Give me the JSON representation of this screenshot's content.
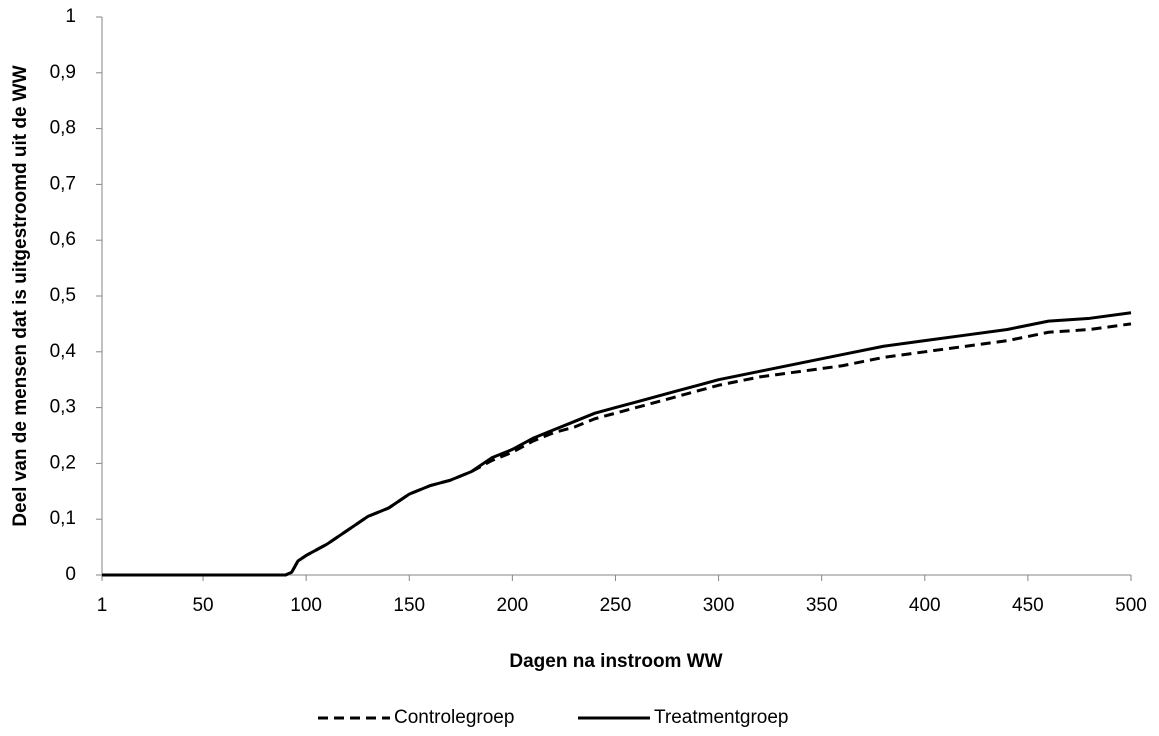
{
  "chart_data": {
    "type": "line",
    "x_label": "Dagen na instroom WW",
    "y_label": "Deel van de mensen dat is uitgestroomd uit de WW",
    "x": [
      1,
      10,
      20,
      30,
      40,
      50,
      60,
      70,
      80,
      90,
      93,
      96,
      100,
      110,
      120,
      130,
      140,
      150,
      160,
      170,
      180,
      190,
      200,
      210,
      220,
      230,
      240,
      250,
      260,
      270,
      280,
      290,
      300,
      320,
      340,
      360,
      380,
      400,
      420,
      440,
      460,
      480,
      500
    ],
    "series": [
      {
        "name": "Controlegroep",
        "color": "#000000",
        "dash": true,
        "values": [
          0,
          0,
          0,
          0,
          0,
          0,
          0,
          0,
          0,
          0,
          0.005,
          0.025,
          0.035,
          0.055,
          0.08,
          0.105,
          0.12,
          0.145,
          0.16,
          0.17,
          0.185,
          0.205,
          0.22,
          0.24,
          0.255,
          0.265,
          0.28,
          0.29,
          0.3,
          0.31,
          0.32,
          0.33,
          0.34,
          0.355,
          0.365,
          0.375,
          0.39,
          0.4,
          0.41,
          0.42,
          0.435,
          0.44,
          0.45
        ]
      },
      {
        "name": "Treatmentgroep",
        "color": "#000000",
        "dash": false,
        "values": [
          0,
          0,
          0,
          0,
          0,
          0,
          0,
          0,
          0,
          0,
          0.005,
          0.025,
          0.035,
          0.055,
          0.08,
          0.105,
          0.12,
          0.145,
          0.16,
          0.17,
          0.185,
          0.21,
          0.225,
          0.245,
          0.26,
          0.275,
          0.29,
          0.3,
          0.31,
          0.32,
          0.33,
          0.34,
          0.35,
          0.365,
          0.38,
          0.395,
          0.41,
          0.42,
          0.43,
          0.44,
          0.455,
          0.46,
          0.47
        ]
      }
    ],
    "xlim": [
      1,
      500
    ],
    "xticks": [
      1,
      50,
      100,
      150,
      200,
      250,
      300,
      350,
      400,
      450,
      500
    ],
    "ylim": [
      0,
      1
    ],
    "yticks": [
      0,
      {
        "value": 0.1,
        "label": "0,1"
      },
      {
        "value": 0.2,
        "label": "0,2"
      },
      {
        "value": 0.3,
        "label": "0,3"
      },
      {
        "value": 0.4,
        "label": "0,4"
      },
      {
        "value": 0.5,
        "label": "0,5"
      },
      {
        "value": 0.6,
        "label": "0,6"
      },
      {
        "value": 0.7,
        "label": "0,7"
      },
      {
        "value": 0.8,
        "label": "0,8"
      },
      {
        "value": 0.9,
        "label": "0,9"
      },
      1
    ],
    "grid": false,
    "legend": "bottom"
  }
}
